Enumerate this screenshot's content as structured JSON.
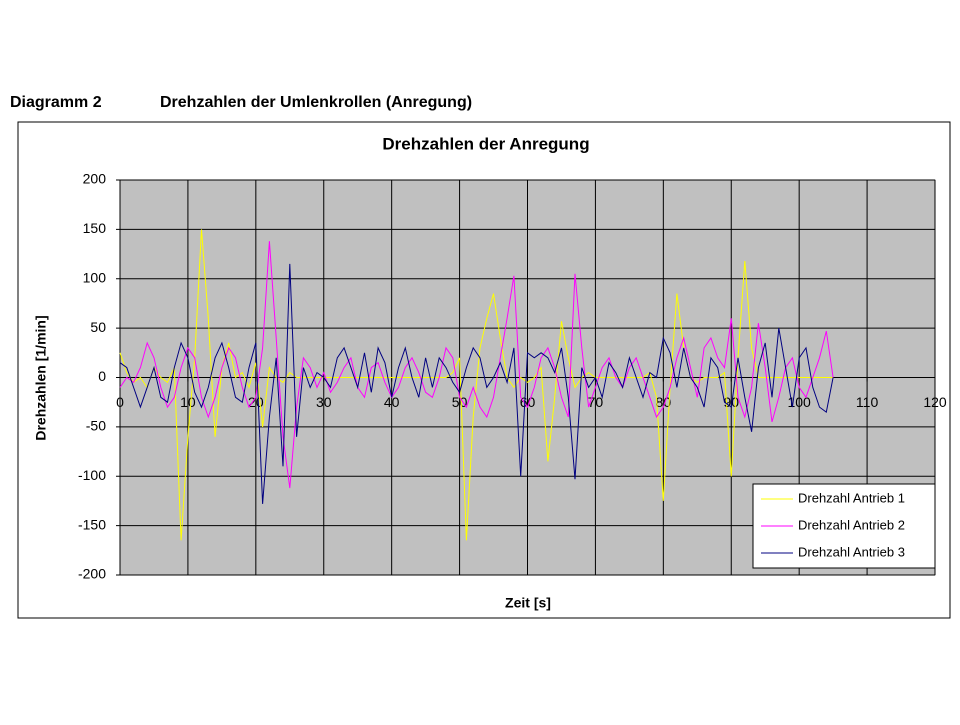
{
  "heading": {
    "label": "Diagramm 2",
    "title": "Drehzahlen der Umlenkrollen (Anregung)"
  },
  "chart_data": {
    "type": "line",
    "title": "Drehzahlen der Anregung",
    "x_label": "Zeit [s]",
    "y_label": "Drehzahlen [1/min]",
    "xlim": [
      0,
      120
    ],
    "xticks": [
      0,
      10,
      20,
      30,
      40,
      50,
      60,
      70,
      80,
      90,
      100,
      110,
      120
    ],
    "ylim": [
      -200,
      200
    ],
    "yticks": [
      -200,
      -150,
      -100,
      -50,
      0,
      50,
      100,
      150,
      200
    ],
    "grid": true,
    "legend": "lower right",
    "x": [
      0,
      1,
      2,
      3,
      4,
      5,
      6,
      7,
      8,
      9,
      10,
      11,
      12,
      13,
      14,
      15,
      16,
      17,
      18,
      19,
      20,
      21,
      22,
      23,
      24,
      25,
      26,
      27,
      28,
      29,
      30,
      31,
      32,
      33,
      34,
      35,
      36,
      37,
      38,
      39,
      40,
      41,
      42,
      43,
      44,
      45,
      46,
      47,
      48,
      49,
      50,
      51,
      52,
      53,
      54,
      55,
      56,
      57,
      58,
      59,
      60,
      61,
      62,
      63,
      64,
      65,
      66,
      67,
      68,
      69,
      70,
      71,
      72,
      73,
      74,
      75,
      76,
      77,
      78,
      79,
      80,
      81,
      82,
      83,
      84,
      85,
      86,
      87,
      88,
      89,
      90,
      91,
      92,
      93,
      94,
      95,
      96,
      97,
      98,
      99,
      100,
      101,
      102,
      103,
      104,
      105
    ],
    "series": [
      {
        "name": "Drehzahl Antrieb 1",
        "color": "#ffff00",
        "values": [
          25,
          5,
          -5,
          0,
          -10,
          10,
          0,
          -5,
          10,
          -165,
          -60,
          20,
          150,
          60,
          -60,
          10,
          35,
          0,
          5,
          -10,
          15,
          -50,
          10,
          0,
          -5,
          5,
          0,
          0,
          0,
          0,
          0,
          0,
          0,
          0,
          0,
          0,
          0,
          0,
          0,
          0,
          0,
          0,
          0,
          0,
          0,
          0,
          0,
          0,
          0,
          5,
          20,
          -165,
          -40,
          30,
          60,
          85,
          40,
          0,
          -10,
          0,
          -5,
          0,
          10,
          -85,
          -20,
          57,
          20,
          -10,
          0,
          5,
          0,
          0,
          0,
          0,
          0,
          0,
          0,
          0,
          5,
          -20,
          -125,
          -10,
          85,
          30,
          0,
          -5,
          0,
          0,
          0,
          5,
          -100,
          20,
          118,
          30,
          0,
          0,
          0,
          0,
          0,
          0,
          0,
          0,
          0,
          0,
          0,
          0
        ]
      },
      {
        "name": "Drehzahl Antrieb 2",
        "color": "#ff00ff",
        "values": [
          -10,
          0,
          -5,
          10,
          35,
          20,
          -10,
          -30,
          -20,
          10,
          30,
          20,
          -20,
          -40,
          -20,
          10,
          30,
          20,
          -10,
          -30,
          -20,
          30,
          138,
          40,
          -60,
          -112,
          -30,
          20,
          10,
          -10,
          5,
          -15,
          -5,
          10,
          20,
          -10,
          -20,
          10,
          15,
          -5,
          -20,
          -10,
          10,
          20,
          5,
          -15,
          -20,
          0,
          30,
          20,
          -20,
          -30,
          -10,
          -30,
          -40,
          -20,
          20,
          60,
          103,
          -20,
          -30,
          -10,
          20,
          30,
          10,
          -20,
          -40,
          105,
          30,
          -30,
          -10,
          10,
          20,
          0,
          -10,
          10,
          20,
          0,
          -20,
          -40,
          -30,
          -10,
          20,
          40,
          10,
          -20,
          30,
          40,
          20,
          10,
          60,
          -20,
          -40,
          -10,
          55,
          10,
          -45,
          -20,
          10,
          20,
          -10,
          -20,
          0,
          20,
          47,
          0
        ]
      },
      {
        "name": "Drehzahl Antrieb 3",
        "color": "#000080",
        "values": [
          15,
          10,
          -10,
          -30,
          -10,
          10,
          -20,
          -25,
          10,
          35,
          20,
          -15,
          -30,
          -10,
          20,
          35,
          10,
          -20,
          -25,
          10,
          35,
          -128,
          -40,
          20,
          -90,
          115,
          -60,
          10,
          -10,
          5,
          0,
          -10,
          20,
          30,
          10,
          -10,
          25,
          -15,
          30,
          15,
          -20,
          10,
          30,
          0,
          -20,
          20,
          -10,
          20,
          10,
          -5,
          -15,
          10,
          30,
          20,
          -10,
          0,
          15,
          -5,
          30,
          -100,
          25,
          20,
          25,
          20,
          5,
          30,
          -20,
          -103,
          10,
          -10,
          0,
          -20,
          15,
          5,
          -10,
          20,
          0,
          -20,
          5,
          0,
          40,
          25,
          -10,
          30,
          0,
          -10,
          -30,
          20,
          10,
          -25,
          -30,
          20,
          -20,
          -55,
          10,
          35,
          -20,
          50,
          10,
          -30,
          20,
          30,
          -10,
          -30,
          -35,
          0
        ]
      }
    ]
  }
}
